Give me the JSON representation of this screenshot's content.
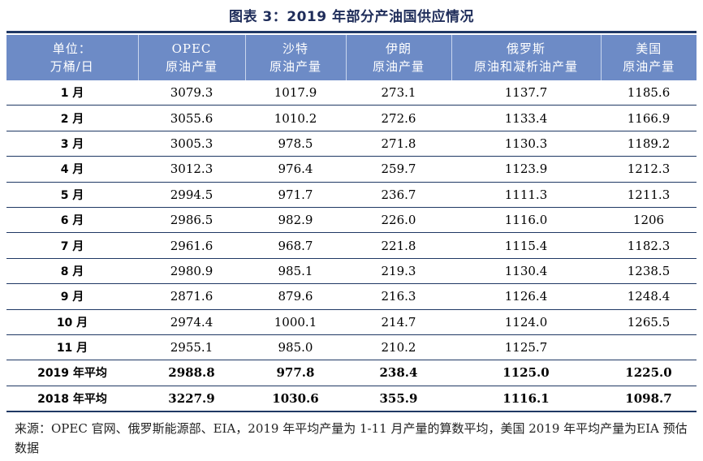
{
  "title": "图表 3：2019 年部分产油国供应情况",
  "header": {
    "unit_line1": "单位：",
    "unit_line2": "万桶/日",
    "opec_line1": "OPEC",
    "opec_line2": "原油产量",
    "saudi_line1": "沙特",
    "saudi_line2": "原油产量",
    "iran_line1": "伊朗",
    "iran_line2": "原油产量",
    "russia_line1": "俄罗斯",
    "russia_line2": "原油和凝析油产量",
    "us_line1": "美国",
    "us_line2": "原油产量"
  },
  "rows": [
    [
      "1 月",
      "3079.3",
      "1017.9",
      "273.1",
      "1137.7",
      "1185.6"
    ],
    [
      "2 月",
      "3055.6",
      "1010.2",
      "272.6",
      "1133.4",
      "1166.9"
    ],
    [
      "3 月",
      "3005.3",
      "978.5",
      "271.8",
      "1130.3",
      "1189.2"
    ],
    [
      "4 月",
      "3012.3",
      "976.4",
      "259.7",
      "1123.9",
      "1212.3"
    ],
    [
      "5 月",
      "2994.5",
      "971.7",
      "236.7",
      "1111.3",
      "1211.3"
    ],
    [
      "6 月",
      "2986.5",
      "982.9",
      "226.0",
      "1116.0",
      "1206"
    ],
    [
      "7 月",
      "2961.6",
      "968.7",
      "221.8",
      "1115.4",
      "1182.3"
    ],
    [
      "8 月",
      "2980.9",
      "985.1",
      "219.3",
      "1130.4",
      "1238.5"
    ],
    [
      "9 月",
      "2871.6",
      "879.6",
      "216.3",
      "1126.4",
      "1248.4"
    ],
    [
      "10 月",
      "2974.4",
      "1000.1",
      "214.7",
      "1124.0",
      "1265.5"
    ],
    [
      "11 月",
      "2955.1",
      "985.0",
      "210.2",
      "1125.7",
      ""
    ],
    [
      "2019 年平均",
      "2988.8",
      "977.8",
      "238.4",
      "1125.0",
      "1225.0"
    ],
    [
      "2018 年平均",
      "3227.9",
      "1030.6",
      "355.9",
      "1116.1",
      "1098.7"
    ]
  ],
  "source": "来源：OPEC 官网、俄罗斯能源部、EIA，2019 年平均产量为 1-11 月产量的算数平均，美国 2019 年平均产量为EIA 预估数据"
}
